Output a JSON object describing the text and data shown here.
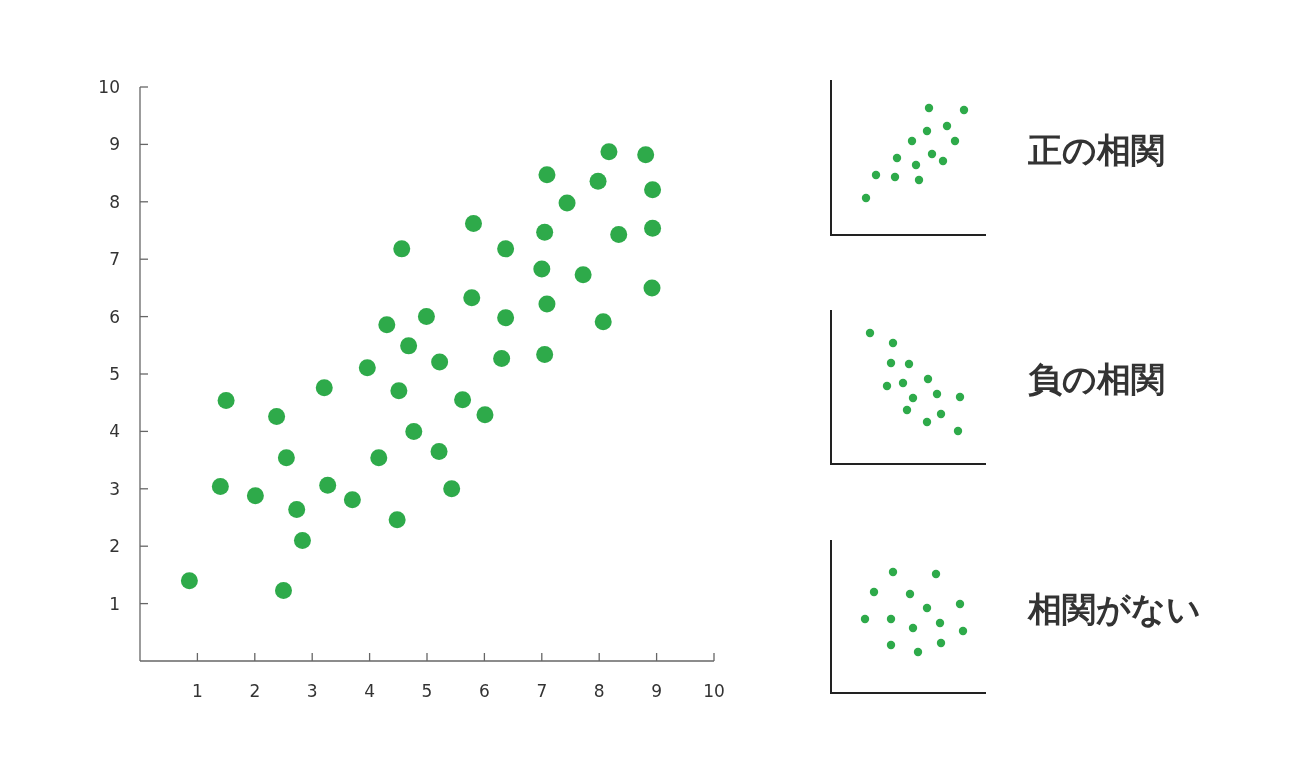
{
  "chart_data": [
    {
      "type": "scatter",
      "xlim": [
        0,
        10
      ],
      "ylim": [
        0,
        10
      ],
      "xticks": [
        1,
        2,
        3,
        4,
        5,
        6,
        7,
        8,
        9,
        10
      ],
      "yticks": [
        1,
        2,
        3,
        4,
        5,
        6,
        7,
        8,
        9,
        10
      ],
      "grid": false,
      "marker": "circle",
      "series": [
        {
          "color": "#2eaa4a",
          "x": [
            0.86,
            1.4,
            1.5,
            2.01,
            2.5,
            2.38,
            2.55,
            2.73,
            2.83,
            3.21,
            3.27,
            3.7,
            3.96,
            4.3,
            4.16,
            4.48,
            4.56,
            4.51,
            4.68,
            4.77,
            4.99,
            5.22,
            5.21,
            5.43,
            5.62,
            5.81,
            5.78,
            6.01,
            6.37,
            6.37,
            6.3,
            7.09,
            7.05,
            7.0,
            7.09,
            7.05,
            7.44,
            7.72,
            7.98,
            8.07,
            8.17,
            8.34,
            8.81,
            8.93,
            8.93,
            8.92
          ],
          "values": [
            1.4,
            3.04,
            4.54,
            2.88,
            1.23,
            4.26,
            3.54,
            2.64,
            2.1,
            4.76,
            3.06,
            2.81,
            5.11,
            5.86,
            3.54,
            2.46,
            7.18,
            4.71,
            5.49,
            4.0,
            6.0,
            5.21,
            3.65,
            3.0,
            4.55,
            7.62,
            6.33,
            4.29,
            7.18,
            5.98,
            5.27,
            8.47,
            7.47,
            6.83,
            6.22,
            5.34,
            7.98,
            6.73,
            8.36,
            5.91,
            8.87,
            7.43,
            8.82,
            8.21,
            7.54,
            6.5
          ]
        }
      ]
    },
    {
      "type": "other",
      "title": "正の相関"
    },
    {
      "type": "other",
      "title": "負の相関"
    },
    {
      "type": "other",
      "title": "相関がない"
    }
  ]
}
